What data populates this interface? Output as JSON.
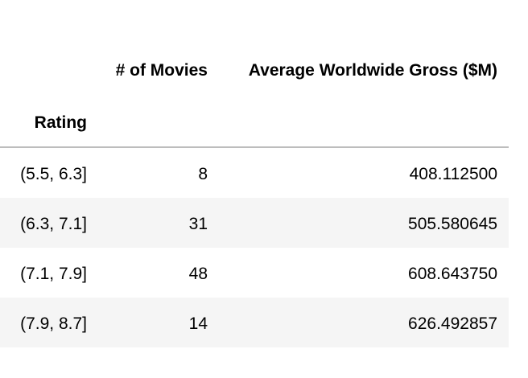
{
  "table": {
    "columns": [
      "# of Movies",
      "Average Worldwide Gross ($M)"
    ],
    "index_name": "Rating",
    "rows": [
      {
        "index": "(5.5, 6.3]",
        "count": "8",
        "avg_gross": "408.112500"
      },
      {
        "index": "(6.3, 7.1]",
        "count": "31",
        "avg_gross": "505.580645"
      },
      {
        "index": "(7.1, 7.9]",
        "count": "48",
        "avg_gross": "608.643750"
      },
      {
        "index": "(7.9, 8.7]",
        "count": "14",
        "avg_gross": "626.492857"
      }
    ]
  },
  "colors": {
    "stripe": "#f5f5f5",
    "divider": "#bdbdbd",
    "text": "#000000"
  }
}
